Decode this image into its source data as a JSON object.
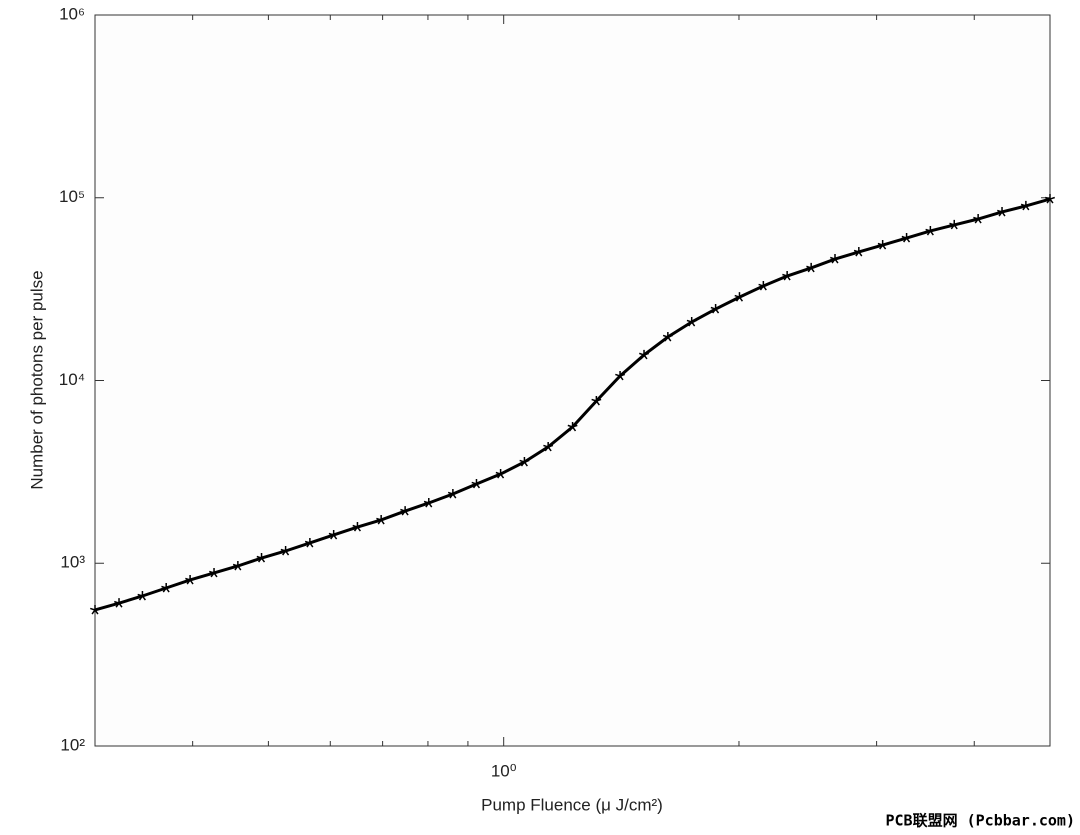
{
  "chart_data": {
    "type": "line",
    "log_x": true,
    "log_y": true,
    "x_label": "Pump Fluence (μ J/cm²)",
    "y_label": "Number of photons per pulse",
    "watermark": "PCB联盟网 (Pcbbar.com)",
    "xlim": [
      0.3,
      5
    ],
    "ylim": [
      100,
      1000000
    ],
    "xticks": [
      {
        "value": 1,
        "label": "10⁰"
      }
    ],
    "xminorticks": [
      0.4,
      0.5,
      0.6,
      0.7,
      0.8,
      0.9,
      2,
      3,
      4
    ],
    "yticks": [
      {
        "value": 100,
        "label": "10²"
      },
      {
        "value": 1000,
        "label": "10³"
      },
      {
        "value": 10000,
        "label": "10⁴"
      },
      {
        "value": 100000,
        "label": "10⁵"
      },
      {
        "value": 1000000,
        "label": "10⁶"
      }
    ],
    "x": [
      0.3,
      0.322,
      0.345,
      0.37,
      0.397,
      0.426,
      0.457,
      0.49,
      0.526,
      0.565,
      0.606,
      0.65,
      0.697,
      0.748,
      0.802,
      0.861,
      0.923,
      0.991,
      1.063,
      1.14,
      1.225,
      1.314,
      1.409,
      1.512,
      1.622,
      1.74,
      1.867,
      2.003,
      2.149,
      2.305,
      2.474,
      2.654,
      2.847,
      3.054,
      3.277,
      3.515,
      3.771,
      4.046,
      4.341,
      4.657,
      5.0
    ],
    "series": [
      {
        "color": "#000000",
        "values": [
          555,
          605,
          662,
          732,
          810,
          885,
          966,
          1068,
          1167,
          1291,
          1428,
          1578,
          1725,
          1930,
          2137,
          2393,
          2716,
          3077,
          3581,
          4329,
          5570,
          7725,
          10590,
          13800,
          17300,
          20900,
          24600,
          28600,
          32900,
          37300,
          41300,
          46200,
          50500,
          55100,
          60200,
          65800,
          71000,
          76500,
          83600,
          90200,
          98400
        ]
      }
    ]
  }
}
